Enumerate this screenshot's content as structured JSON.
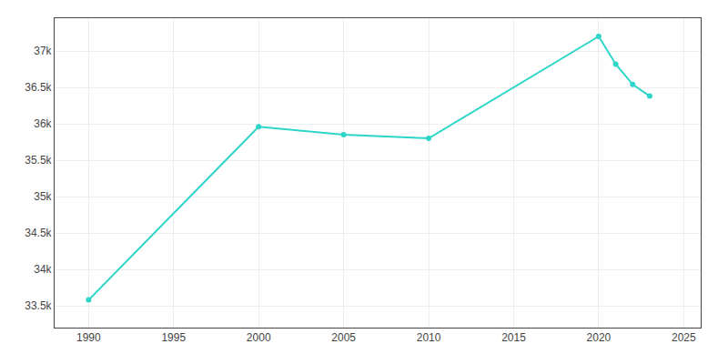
{
  "chart_data": {
    "type": "line",
    "x": [
      1990,
      2000,
      2005,
      2010,
      2020,
      2021,
      2022,
      2023
    ],
    "values": [
      33580,
      35960,
      35850,
      35800,
      37200,
      36820,
      36540,
      36380
    ],
    "color": "#2dd4c8",
    "marker": "circle",
    "xlim": [
      1988,
      2026
    ],
    "ylim": [
      33200,
      37450
    ],
    "xticks": [
      1990,
      1995,
      2000,
      2005,
      2010,
      2015,
      2020,
      2025
    ],
    "yticks": [
      {
        "value": 33500,
        "label": "33.5k"
      },
      {
        "value": 34000,
        "label": "34k"
      },
      {
        "value": 34500,
        "label": "34.5k"
      },
      {
        "value": 35000,
        "label": "35k"
      },
      {
        "value": 35500,
        "label": "35.5k"
      },
      {
        "value": 36000,
        "label": "36k"
      },
      {
        "value": 36500,
        "label": "36.5k"
      },
      {
        "value": 37000,
        "label": "37k"
      }
    ],
    "grid": true
  }
}
